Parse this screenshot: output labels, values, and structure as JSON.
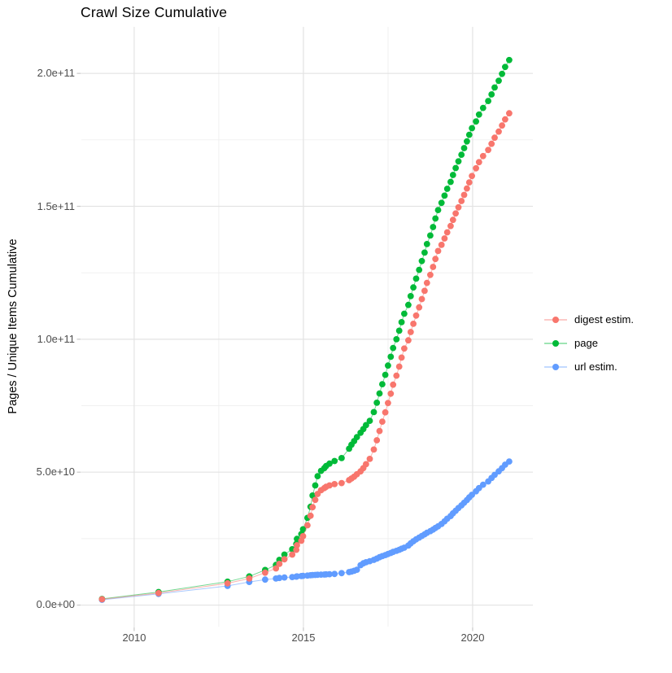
{
  "title": "Crawl Size Cumulative",
  "axes": {
    "y_label": "Pages / Unique Items Cumulative",
    "y_ticks": [
      "0.0e+00",
      "5.0e+10",
      "1.0e+11",
      "1.5e+11",
      "2.0e+11"
    ],
    "x_ticks": [
      "2010",
      "2015",
      "2020"
    ]
  },
  "legend": {
    "position": "right",
    "items": [
      {
        "label": "digest estim.",
        "color": "#F8766D"
      },
      {
        "label": "page",
        "color": "#00BA38"
      },
      {
        "label": "url estim.",
        "color": "#619CFF"
      }
    ]
  },
  "style": {
    "background": "#ffffff",
    "grid_major": "#e3e3e3",
    "grid_minor": "#efefef",
    "tick_mark": "#c9c9c9",
    "axis_text": "#4d4d4d"
  },
  "chart_data": {
    "type": "line",
    "title": "Crawl Size Cumulative",
    "xlabel": "",
    "ylabel": "Pages / Unique Items Cumulative",
    "grid": true,
    "legend_position": "right",
    "x_unit": "year (decimal, one point per crawl)",
    "value_unit": "items, stored as multiples of 1e9",
    "xlim": [
      2008.44,
      2021.78
    ],
    "ylim_e9": [
      -8.1,
      217.5
    ],
    "x_axis": {
      "major": [
        2010,
        2015,
        2020
      ],
      "minor": [
        2012.5,
        2017.5,
        2022.5
      ]
    },
    "y_axis": {
      "major_e9": [
        0,
        50,
        100,
        150,
        200
      ],
      "minor_e9": [
        25,
        75,
        125,
        175
      ]
    },
    "x": [
      2009.05,
      2010.72,
      2012.76,
      2013.4,
      2013.87,
      2014.19,
      2014.29,
      2014.44,
      2014.67,
      2014.79,
      2014.81,
      2014.94,
      2014.99,
      2015.12,
      2015.21,
      2015.27,
      2015.35,
      2015.42,
      2015.52,
      2015.62,
      2015.67,
      2015.77,
      2015.92,
      2016.13,
      2016.35,
      2016.42,
      2016.5,
      2016.58,
      2016.69,
      2016.77,
      2016.85,
      2016.96,
      2017.08,
      2017.17,
      2017.25,
      2017.33,
      2017.42,
      2017.5,
      2017.58,
      2017.65,
      2017.75,
      2017.83,
      2017.9,
      2017.98,
      2018.1,
      2018.17,
      2018.25,
      2018.33,
      2018.42,
      2018.5,
      2018.58,
      2018.65,
      2018.75,
      2018.83,
      2018.9,
      2018.98,
      2019.08,
      2019.17,
      2019.25,
      2019.35,
      2019.42,
      2019.5,
      2019.58,
      2019.67,
      2019.75,
      2019.83,
      2019.9,
      2019.98,
      2020.1,
      2020.19,
      2020.31,
      2020.46,
      2020.56,
      2020.65,
      2020.77,
      2020.87,
      2020.96,
      2021.08
    ],
    "series": [
      {
        "name": "digest estim.",
        "color": "#F8766D",
        "values_e9": [
          2.2,
          4.5,
          8.2,
          10.0,
          12.2,
          13.8,
          15.5,
          17.2,
          19.0,
          20.8,
          22.5,
          24.2,
          25.9,
          30.0,
          33.6,
          36.8,
          39.6,
          41.8,
          43.2,
          44.0,
          44.5,
          45.0,
          45.5,
          45.9,
          47.0,
          47.6,
          48.3,
          49.2,
          50.3,
          51.5,
          53.0,
          55.0,
          58.5,
          62.0,
          65.5,
          69.0,
          72.5,
          76.0,
          79.5,
          82.9,
          86.3,
          89.7,
          93.1,
          96.5,
          99.6,
          102.7,
          105.8,
          108.9,
          112.0,
          115.1,
          118.2,
          121.2,
          124.2,
          127.2,
          130.2,
          133.2,
          135.5,
          137.9,
          140.2,
          142.6,
          144.9,
          147.3,
          149.6,
          152.0,
          154.3,
          156.7,
          159.0,
          161.4,
          164.3,
          166.6,
          168.9,
          171.2,
          173.5,
          175.8,
          178.1,
          180.4,
          182.7,
          185.0
        ]
      },
      {
        "name": "page",
        "color": "#00BA38",
        "values_e9": [
          2.3,
          4.9,
          8.8,
          10.8,
          13.2,
          15.1,
          17.0,
          19.0,
          21.0,
          23.0,
          24.9,
          26.7,
          28.5,
          32.8,
          37.0,
          41.2,
          45.0,
          48.5,
          50.5,
          51.5,
          52.3,
          53.2,
          54.2,
          55.3,
          58.8,
          60.3,
          61.7,
          63.2,
          64.8,
          66.2,
          67.7,
          69.3,
          72.6,
          76.1,
          79.6,
          83.1,
          86.6,
          90.1,
          93.4,
          96.7,
          100.0,
          103.2,
          106.4,
          109.6,
          112.9,
          116.2,
          119.5,
          122.8,
          126.1,
          129.4,
          132.6,
          135.8,
          139.0,
          142.2,
          145.4,
          148.6,
          151.3,
          154.0,
          156.6,
          159.2,
          161.8,
          164.4,
          166.9,
          169.4,
          171.9,
          174.4,
          176.9,
          179.4,
          181.9,
          184.5,
          187.0,
          189.6,
          192.1,
          194.7,
          197.2,
          199.8,
          202.4,
          205.0
        ]
      },
      {
        "name": "url estim.",
        "color": "#619CFF",
        "values_e9": [
          2.0,
          4.2,
          7.2,
          8.7,
          9.6,
          10.0,
          10.2,
          10.4,
          10.55,
          10.7,
          10.8,
          10.9,
          11.0,
          11.1,
          11.2,
          11.3,
          11.35,
          11.4,
          11.45,
          11.5,
          11.55,
          11.6,
          11.7,
          12.0,
          12.4,
          12.6,
          12.9,
          13.3,
          15.0,
          15.7,
          16.1,
          16.5,
          17.0,
          17.5,
          18.0,
          18.4,
          18.8,
          19.2,
          19.6,
          20.0,
          20.4,
          20.8,
          21.2,
          21.6,
          22.4,
          23.2,
          24.0,
          24.7,
          25.4,
          26.0,
          26.6,
          27.2,
          27.8,
          28.4,
          29.0,
          29.6,
          30.5,
          31.5,
          32.5,
          33.5,
          34.5,
          35.5,
          36.5,
          37.5,
          38.5,
          39.5,
          40.5,
          41.5,
          42.8,
          44.0,
          45.3,
          46.5,
          47.8,
          49.0,
          50.3,
          51.5,
          52.8,
          54.0
        ]
      }
    ]
  }
}
